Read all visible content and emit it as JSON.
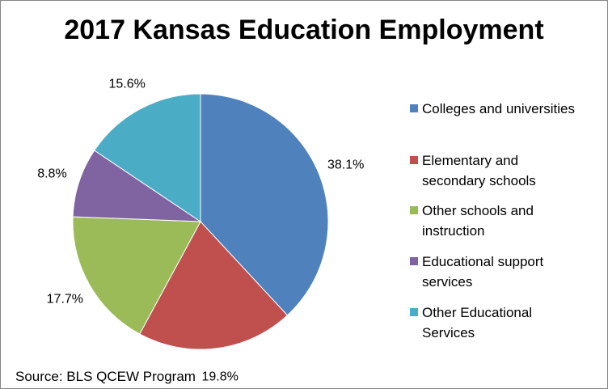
{
  "chart_data": {
    "type": "pie",
    "title": "2017 Kansas Education Employment",
    "slices": [
      {
        "name": "Colleges and universities",
        "value": 38.1,
        "label": "38.1%",
        "color": "#4F81BD"
      },
      {
        "name": "Elementary and secondary schools",
        "value": 19.8,
        "label": "19.8%",
        "color": "#C0504D"
      },
      {
        "name": "Other schools and instruction",
        "value": 17.7,
        "label": "17.7%",
        "color": "#9BBB59"
      },
      {
        "name": "Educational support services",
        "value": 8.8,
        "label": "8.8%",
        "color": "#8064A2"
      },
      {
        "name": "Other Educational Services",
        "value": 15.6,
        "label": "15.6%",
        "color": "#4BACC6"
      }
    ],
    "legend": {
      "position": "right",
      "entries": [
        {
          "line1": "Colleges and universities",
          "line2": ""
        },
        {
          "line1": "Elementary and",
          "line2": "secondary schools"
        },
        {
          "line1": "Other schools and",
          "line2": "instruction"
        },
        {
          "line1": "Educational support",
          "line2": "services"
        },
        {
          "line1": "Other Educational",
          "line2": "Services"
        }
      ]
    },
    "source": "Source: BLS QCEW Program"
  }
}
